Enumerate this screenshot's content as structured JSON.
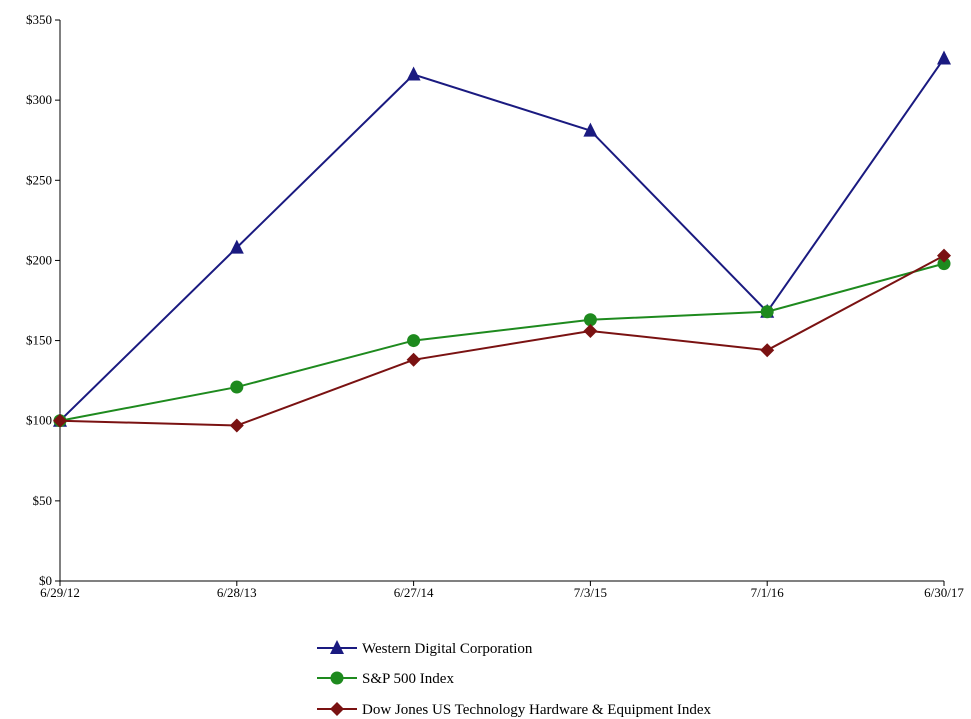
{
  "chart_data": {
    "type": "line",
    "categories": [
      "6/29/12",
      "6/28/13",
      "6/27/14",
      "7/3/15",
      "7/1/16",
      "6/30/17"
    ],
    "ylim": [
      0,
      350
    ],
    "y_ticks": [
      "$0",
      "$50",
      "$100",
      "$150",
      "$200",
      "$250",
      "$300",
      "$350"
    ],
    "grid": false,
    "legend_position": "bottom",
    "series": [
      {
        "name": "Western Digital Corporation",
        "color": "#1a1a80",
        "marker": "triangle",
        "values": [
          100,
          208,
          316,
          281,
          168,
          326
        ]
      },
      {
        "name": "S&P 500 Index",
        "color": "#1e8a1e",
        "marker": "circle",
        "values": [
          100,
          121,
          150,
          163,
          168,
          198
        ]
      },
      {
        "name": "Dow Jones US Technology Hardware & Equipment Index",
        "color": "#7a1212",
        "marker": "diamond",
        "values": [
          100,
          97,
          138,
          156,
          144,
          203
        ]
      }
    ]
  }
}
